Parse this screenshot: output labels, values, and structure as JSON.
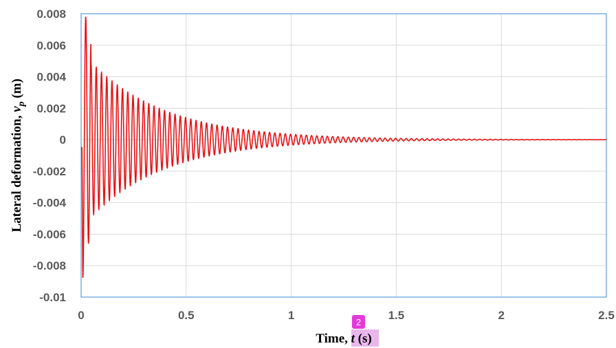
{
  "chart_data": {
    "type": "line",
    "xlabel_prefix": "Time, ",
    "xlabel_var": "t",
    "xlabel_unit": " (s)",
    "ylabel_prefix": "Lateral deformation, ",
    "ylabel_var": "v",
    "ylabel_sub": "p",
    "ylabel_unit": " (m)",
    "xlim": [
      0,
      2.5
    ],
    "ylim": [
      -0.01,
      0.008
    ],
    "x_ticks": [
      "0",
      "0.5",
      "1",
      "1.5",
      "2",
      "2.5"
    ],
    "y_ticks": [
      "0.008",
      "0.006",
      "0.004",
      "0.002",
      "0",
      "-0.002",
      "-0.004",
      "-0.006",
      "-0.008",
      "-0.01"
    ],
    "grid": true,
    "series": [
      {
        "color": "#e81010",
        "description_of_signal": "damped oscillation",
        "frequency_hz": 40,
        "peak_points": [
          {
            "t": 0.008,
            "v": -0.0088
          },
          {
            "t": 0.022,
            "v": 0.0078
          },
          {
            "t": 0.035,
            "v": -0.0066
          },
          {
            "t": 0.047,
            "v": 0.0061
          },
          {
            "t": 0.1,
            "v": 0.0051
          },
          {
            "t": 0.25,
            "v": 0.0033
          },
          {
            "t": 0.5,
            "v": 0.0018
          },
          {
            "t": 0.75,
            "v": 0.0009
          },
          {
            "t": 1.0,
            "v": 0.0004
          },
          {
            "t": 1.5,
            "v": 0.0001
          },
          {
            "t": 2.0,
            "v": 2e-05
          },
          {
            "t": 2.5,
            "v": 0.0
          }
        ]
      }
    ]
  },
  "annotation": {
    "badge": "2"
  }
}
